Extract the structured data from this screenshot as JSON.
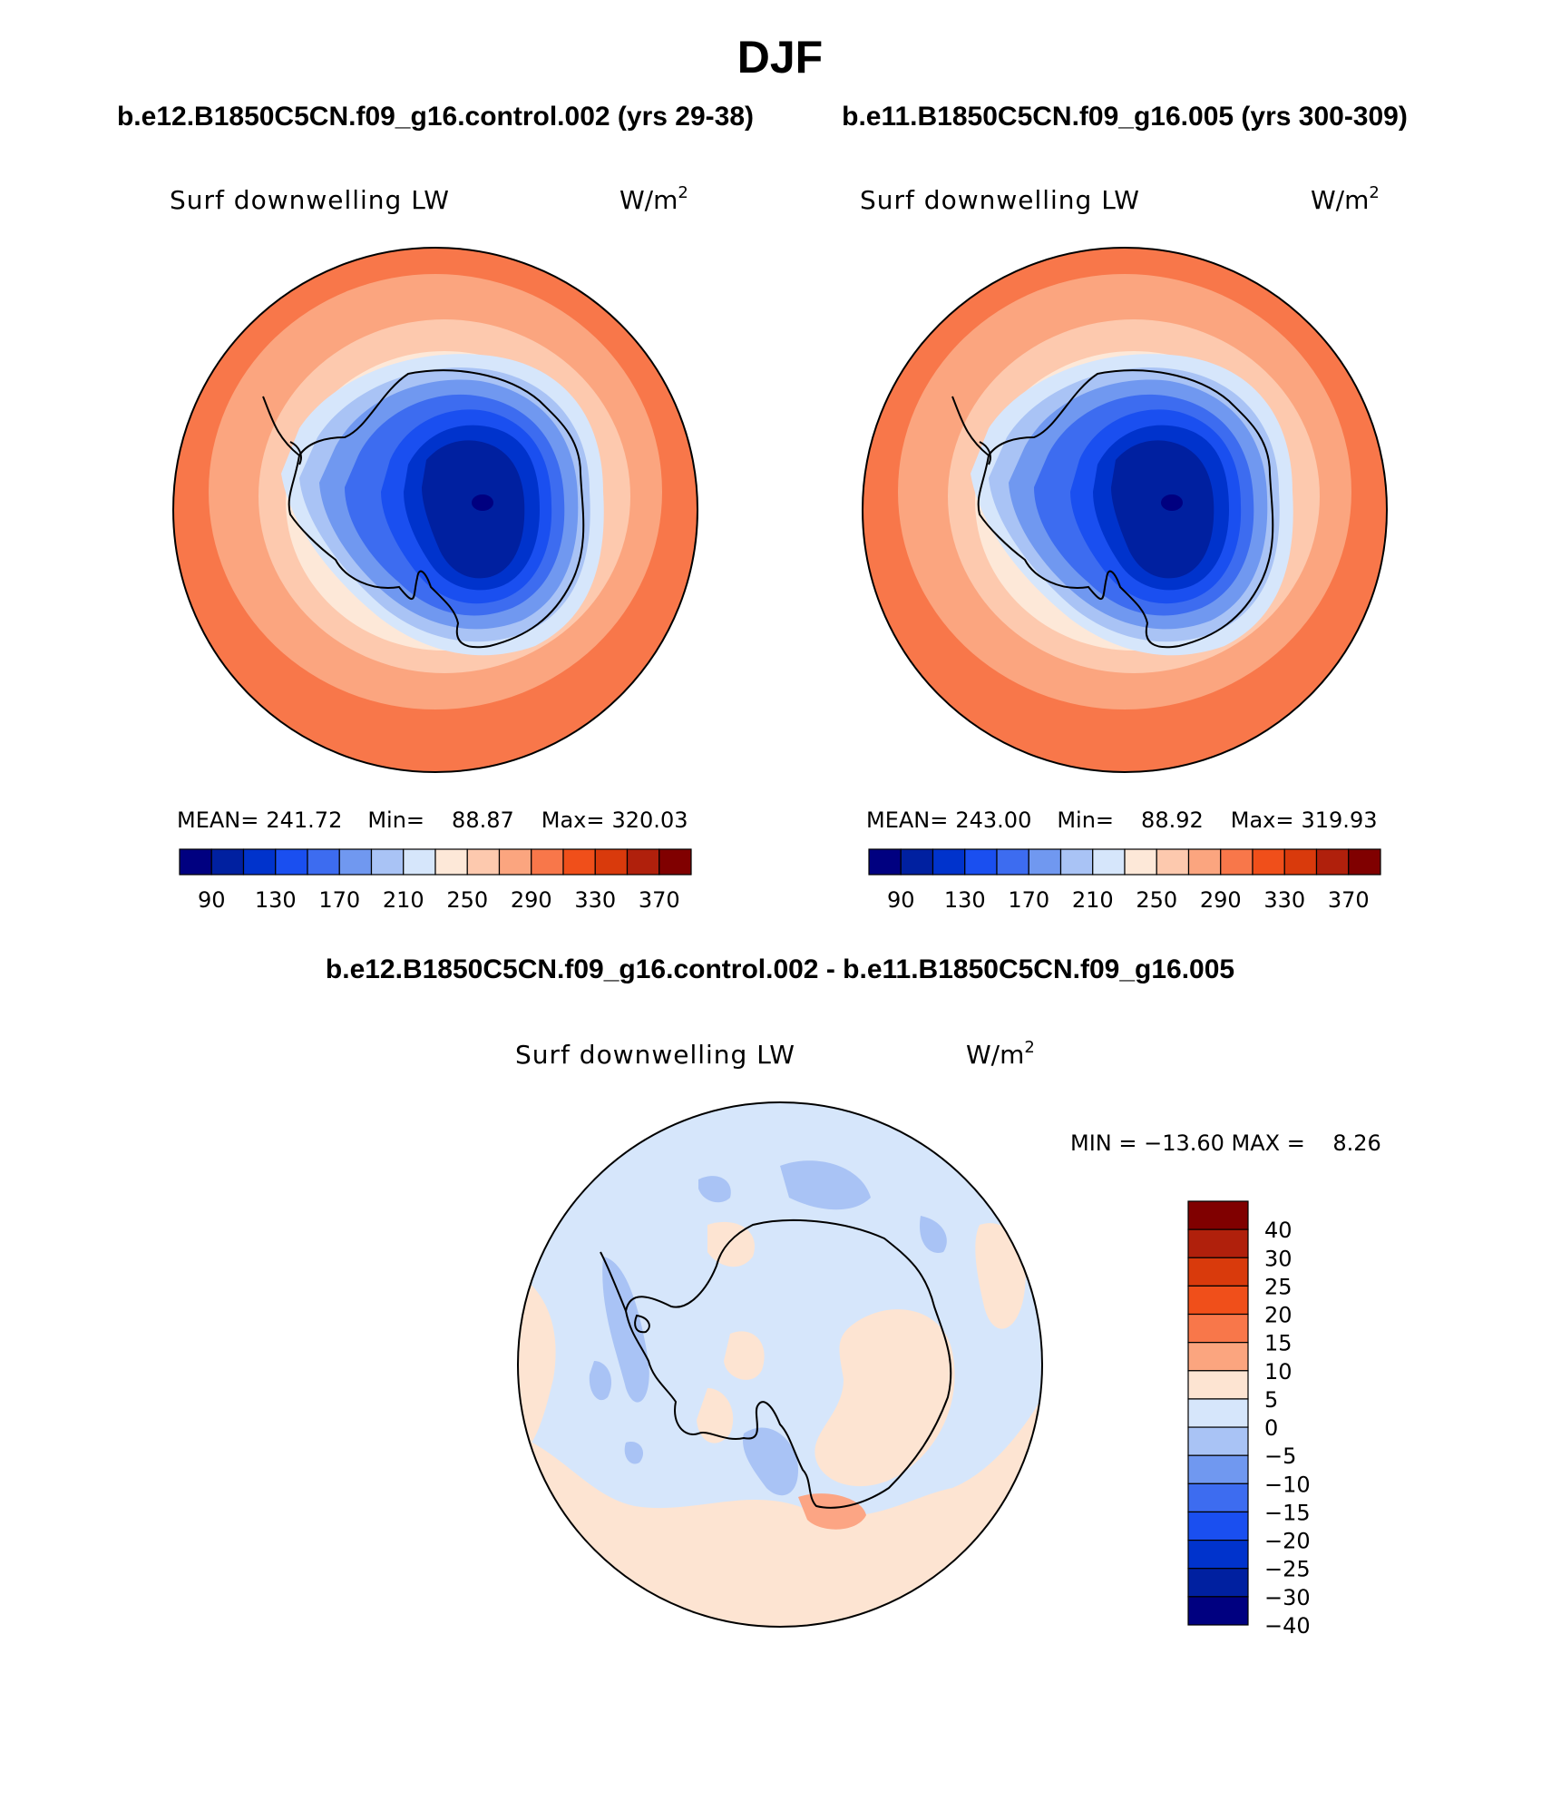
{
  "season": "DJF",
  "panels": [
    {
      "case_title": "b.e12.B1850C5CN.f09_g16.control.002 (yrs 29-38)",
      "variable": "Surf downwelling LW",
      "units": "W/m",
      "units_power": "2",
      "stats": {
        "mean_label": "MEAN=",
        "mean": "241.72",
        "min_label": "Min=",
        "min": "88.87",
        "max_label": "Max=",
        "max": "320.03"
      }
    },
    {
      "case_title": "b.e11.B1850C5CN.f09_g16.005 (yrs 300-309)",
      "variable": "Surf downwelling LW",
      "units": "W/m",
      "units_power": "2",
      "stats": {
        "mean_label": "MEAN=",
        "mean": "243.00",
        "min_label": "Min=",
        "min": "88.92",
        "max_label": "Max=",
        "max": "319.93"
      }
    }
  ],
  "abs_colorbar": {
    "colors": [
      "#000080",
      "#0020a0",
      "#0033cc",
      "#1a4ff0",
      "#3d6cf0",
      "#7098f0",
      "#a9c3f5",
      "#d6e6fb",
      "#fde8d8",
      "#fdc9ae",
      "#fba57f",
      "#f8774a",
      "#f04f1a",
      "#d93a0c",
      "#b0200c",
      "#800000"
    ],
    "tick_labels": [
      "90",
      "130",
      "170",
      "210",
      "250",
      "290",
      "330",
      "370"
    ]
  },
  "diff": {
    "title": "b.e12.B1850C5CN.f09_g16.control.002 - b.e11.B1850C5CN.f09_g16.005",
    "variable": "Surf downwelling LW",
    "units": "W/m",
    "units_power": "2",
    "minmax": "MIN = −13.60 MAX =    8.26",
    "colors": [
      "#800000",
      "#b0200c",
      "#d93a0c",
      "#f04f1a",
      "#f8774a",
      "#fba57f",
      "#fde4d2",
      "#d6e6fb",
      "#a9c3f5",
      "#7098f0",
      "#3d6cf0",
      "#1a4ff0",
      "#0033cc",
      "#0020a0",
      "#000080"
    ],
    "tick_labels": [
      "40",
      "30",
      "25",
      "20",
      "15",
      "10",
      "5",
      "0",
      "−5",
      "−10",
      "−15",
      "−20",
      "−25",
      "−30",
      "−40"
    ]
  }
}
